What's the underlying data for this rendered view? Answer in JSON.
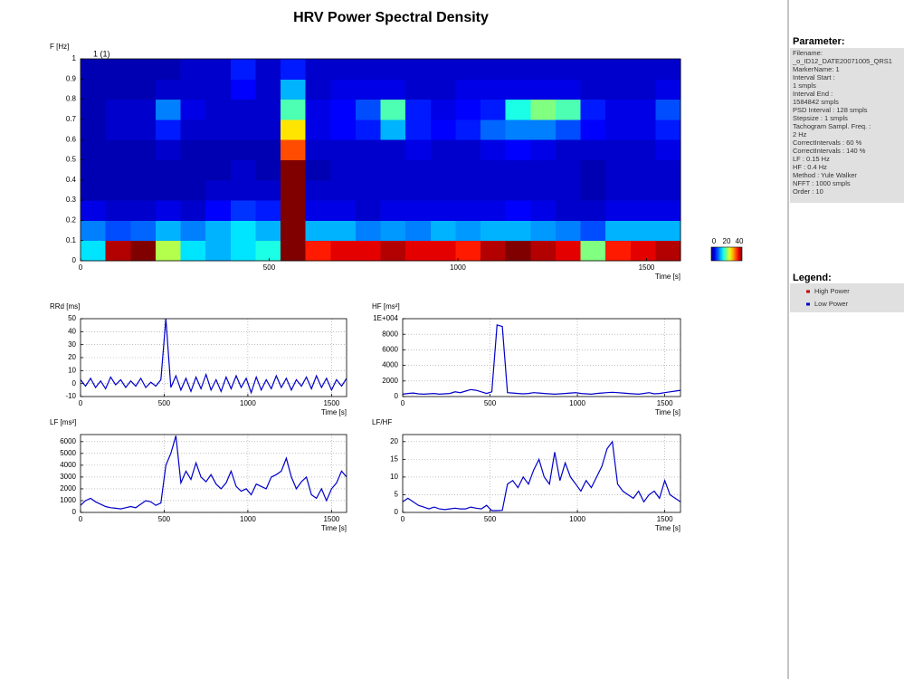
{
  "title": "HRV Power Spectral Density",
  "chart_data": [
    {
      "type": "heatmap",
      "annotation": "1 (1)",
      "ylabel": "F [Hz]",
      "xlabel": "Time [s]",
      "xlim": [
        0,
        1590
      ],
      "xticks": [
        0,
        500,
        1000,
        1500
      ],
      "ylim": [
        0,
        1
      ],
      "yticks": [
        0,
        0.1,
        0.2,
        0.3,
        0.4,
        0.5,
        0.6,
        0.7,
        0.8,
        0.9,
        1
      ],
      "colormap": "jet",
      "clim": [
        0,
        40
      ],
      "colorbar_ticks": [
        0,
        20,
        40
      ],
      "values": [
        [
          14,
          38,
          40,
          22,
          14,
          12,
          14,
          16,
          40,
          34,
          36,
          36,
          38,
          36,
          36,
          34,
          38,
          40,
          38,
          36,
          20,
          34,
          36,
          38
        ],
        [
          10,
          8,
          9,
          12,
          10,
          12,
          14,
          12,
          40,
          12,
          12,
          10,
          11,
          10,
          12,
          11,
          12,
          12,
          11,
          10,
          8,
          12,
          12,
          12
        ],
        [
          4,
          3,
          3,
          4,
          3,
          5,
          7,
          6,
          40,
          4,
          4,
          3,
          4,
          4,
          4,
          4,
          4,
          5,
          4,
          3,
          3,
          4,
          4,
          4
        ],
        [
          2,
          2,
          2,
          2,
          2,
          3,
          3,
          3,
          40,
          3,
          3,
          3,
          3,
          3,
          3,
          3,
          3,
          3,
          3,
          3,
          2,
          3,
          3,
          3
        ],
        [
          2,
          2,
          2,
          2,
          2,
          2,
          3,
          2,
          40,
          2,
          3,
          3,
          3,
          3,
          3,
          3,
          3,
          3,
          3,
          3,
          2,
          3,
          3,
          3
        ],
        [
          2,
          2,
          2,
          3,
          2,
          2,
          2,
          2,
          32,
          3,
          3,
          3,
          3,
          4,
          3,
          3,
          4,
          5,
          4,
          3,
          3,
          3,
          3,
          4
        ],
        [
          2,
          3,
          3,
          6,
          3,
          3,
          3,
          3,
          26,
          4,
          5,
          6,
          12,
          6,
          5,
          6,
          9,
          10,
          10,
          8,
          5,
          4,
          4,
          6
        ],
        [
          2,
          3,
          3,
          10,
          4,
          3,
          3,
          3,
          18,
          4,
          5,
          8,
          18,
          6,
          4,
          5,
          6,
          16,
          20,
          18,
          6,
          4,
          4,
          8
        ],
        [
          2,
          2,
          2,
          3,
          3,
          3,
          5,
          3,
          12,
          3,
          4,
          4,
          4,
          3,
          3,
          4,
          4,
          4,
          4,
          4,
          3,
          3,
          3,
          4
        ],
        [
          2,
          2,
          2,
          2,
          3,
          3,
          6,
          3,
          6,
          3,
          3,
          3,
          3,
          3,
          3,
          3,
          3,
          3,
          3,
          3,
          3,
          3,
          3,
          3
        ]
      ]
    },
    {
      "type": "line",
      "ylabel": "RRd [ms]",
      "xlabel": "Time [s]",
      "color": "#0000c8",
      "grid": true,
      "xlim": [
        0,
        1590
      ],
      "xticks": [
        0,
        500,
        1000,
        1500
      ],
      "ylim": [
        -10,
        50
      ],
      "yticks": [
        -10,
        0,
        10,
        20,
        30,
        40,
        50
      ],
      "x": [
        0,
        30,
        60,
        90,
        120,
        150,
        180,
        210,
        240,
        270,
        300,
        330,
        360,
        390,
        420,
        450,
        480,
        510,
        540,
        570,
        600,
        630,
        660,
        690,
        720,
        750,
        780,
        810,
        840,
        870,
        900,
        930,
        960,
        990,
        1020,
        1050,
        1080,
        1110,
        1140,
        1170,
        1200,
        1230,
        1260,
        1290,
        1320,
        1350,
        1380,
        1410,
        1440,
        1470,
        1500,
        1530,
        1560,
        1590
      ],
      "values": [
        3,
        -2,
        4,
        -3,
        2,
        -4,
        5,
        -1,
        3,
        -3,
        2,
        -2,
        4,
        -3,
        1,
        -2,
        3,
        50,
        -3,
        6,
        -5,
        4,
        -6,
        5,
        -4,
        7,
        -5,
        3,
        -6,
        5,
        -4,
        6,
        -3,
        4,
        -7,
        5,
        -5,
        3,
        -4,
        6,
        -3,
        4,
        -5,
        3,
        -2,
        5,
        -4,
        6,
        -3,
        4,
        -5,
        3,
        -2,
        4
      ]
    },
    {
      "type": "line",
      "ylabel": "HF [ms²]",
      "xlabel": "Time [s]",
      "color": "#0000c8",
      "grid": true,
      "xlim": [
        0,
        1590
      ],
      "xticks": [
        0,
        500,
        1000,
        1500
      ],
      "ylim": [
        0,
        10000
      ],
      "yticks": [
        0,
        2000,
        4000,
        6000,
        8000,
        {
          "value": 10000,
          "label": "1E+004"
        }
      ],
      "x": [
        0,
        30,
        60,
        90,
        120,
        150,
        180,
        210,
        240,
        270,
        300,
        330,
        360,
        390,
        420,
        450,
        480,
        510,
        540,
        570,
        600,
        630,
        660,
        690,
        720,
        750,
        780,
        810,
        840,
        870,
        900,
        930,
        960,
        990,
        1020,
        1050,
        1080,
        1110,
        1140,
        1170,
        1200,
        1230,
        1260,
        1290,
        1320,
        1350,
        1380,
        1410,
        1440,
        1470,
        1500,
        1530,
        1560,
        1590
      ],
      "values": [
        300,
        400,
        450,
        350,
        300,
        350,
        400,
        300,
        350,
        400,
        600,
        500,
        700,
        900,
        800,
        600,
        400,
        600,
        9200,
        9000,
        500,
        450,
        400,
        350,
        400,
        500,
        450,
        400,
        350,
        300,
        350,
        400,
        450,
        500,
        400,
        350,
        300,
        400,
        450,
        500,
        550,
        500,
        450,
        400,
        350,
        300,
        400,
        500,
        350,
        400,
        500,
        600,
        700,
        800
      ]
    },
    {
      "type": "line",
      "ylabel": "LF [ms²]",
      "xlabel": "Time [s]",
      "color": "#0000c8",
      "grid": true,
      "xlim": [
        0,
        1590
      ],
      "xticks": [
        0,
        500,
        1000,
        1500
      ],
      "ylim": [
        0,
        6600
      ],
      "yticks": [
        0,
        1000,
        2000,
        3000,
        4000,
        5000,
        6000
      ],
      "x": [
        0,
        30,
        60,
        90,
        120,
        150,
        180,
        210,
        240,
        270,
        300,
        330,
        360,
        390,
        420,
        450,
        480,
        510,
        540,
        570,
        600,
        630,
        660,
        690,
        720,
        750,
        780,
        810,
        840,
        870,
        900,
        930,
        960,
        990,
        1020,
        1050,
        1080,
        1110,
        1140,
        1170,
        1200,
        1230,
        1260,
        1290,
        1320,
        1350,
        1380,
        1410,
        1440,
        1470,
        1500,
        1530,
        1560,
        1590
      ],
      "values": [
        600,
        1000,
        1200,
        900,
        700,
        500,
        400,
        350,
        300,
        400,
        500,
        400,
        700,
        1000,
        900,
        600,
        800,
        4000,
        5000,
        6500,
        2500,
        3500,
        2800,
        4200,
        3000,
        2600,
        3200,
        2400,
        2000,
        2500,
        3500,
        2200,
        1800,
        2000,
        1500,
        2400,
        2200,
        2000,
        3000,
        3200,
        3500,
        4600,
        3000,
        2000,
        2600,
        3000,
        1500,
        1200,
        2000,
        1000,
        2000,
        2500,
        3500,
        3000
      ]
    },
    {
      "type": "line",
      "ylabel": "LF/HF",
      "xlabel": "Time [s]",
      "color": "#0000c8",
      "grid": true,
      "xlim": [
        0,
        1590
      ],
      "xticks": [
        0,
        500,
        1000,
        1500
      ],
      "ylim": [
        0,
        22
      ],
      "yticks": [
        0,
        5,
        10,
        15,
        20
      ],
      "x": [
        0,
        30,
        60,
        90,
        120,
        150,
        180,
        210,
        240,
        270,
        300,
        330,
        360,
        390,
        420,
        450,
        480,
        510,
        540,
        570,
        600,
        630,
        660,
        690,
        720,
        750,
        780,
        810,
        840,
        870,
        900,
        930,
        960,
        990,
        1020,
        1050,
        1080,
        1110,
        1140,
        1170,
        1200,
        1230,
        1260,
        1290,
        1320,
        1350,
        1380,
        1410,
        1440,
        1470,
        1500,
        1530,
        1560,
        1590
      ],
      "values": [
        3,
        4,
        3,
        2,
        1.5,
        1,
        1.5,
        1,
        0.8,
        1,
        1.2,
        1,
        1,
        1.5,
        1.2,
        1,
        2,
        0.5,
        0.5,
        0.6,
        8,
        9,
        7,
        10,
        8,
        12,
        15,
        10,
        8,
        17,
        9,
        14,
        10,
        8,
        6,
        9,
        7,
        10,
        13,
        18,
        20,
        8,
        6,
        5,
        4,
        6,
        3,
        5,
        6,
        4,
        9,
        5,
        4,
        3
      ]
    }
  ],
  "panel": {
    "parameter_title": "Parameter:",
    "parameters": [
      "Filename:",
      "_o_ID12_DATE20071005_QRS1",
      "MarkerName: 1",
      "Interval Start :",
      "1 smpls",
      "Interval End :",
      "1584842 smpls",
      "PSD Interval : 128 smpls",
      "Stepsize : 1 smpls",
      "Tachogram Sampl. Freq. :",
      "2 Hz",
      "CorrectIntervals : 60 %",
      "CorrectIntervals : 140 %",
      "LF : 0.15 Hz",
      "HF : 0.4 Hz",
      "Method : Yule Walker",
      "NFFT : 1000 smpls",
      "Order : 10"
    ],
    "legend_title": "Legend:",
    "legend_items": [
      {
        "name": "High Power",
        "color": "#c00000"
      },
      {
        "name": "Low Power",
        "color": "#0000c8"
      }
    ]
  }
}
